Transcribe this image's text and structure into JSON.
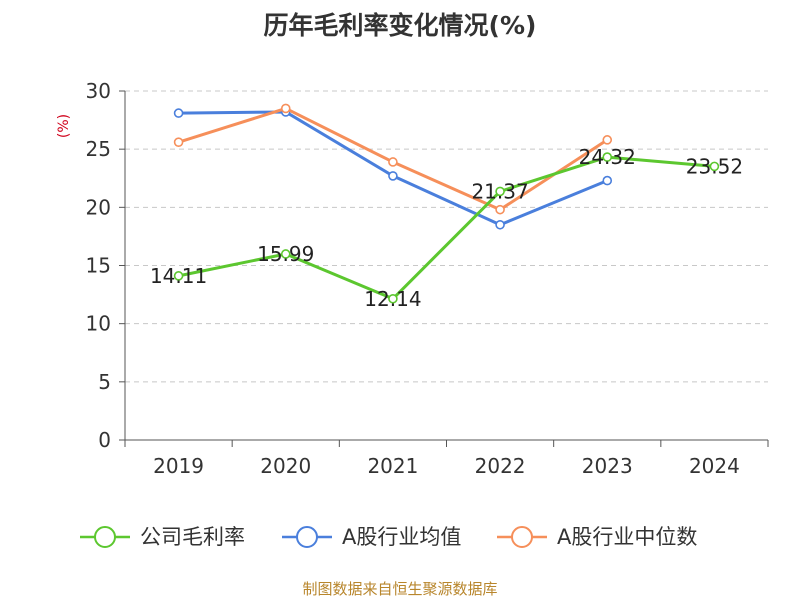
{
  "chart_data": {
    "type": "line",
    "title": "历年毛利率变化情况(%)",
    "ylabel": "(%)",
    "xlabel": "",
    "categories": [
      "2019",
      "2020",
      "2021",
      "2022",
      "2023",
      "2024"
    ],
    "ylim": [
      0,
      30
    ],
    "yticks": [
      0,
      5,
      10,
      15,
      20,
      25,
      30
    ],
    "grid": true,
    "legend_position": "bottom",
    "series": [
      {
        "name": "公司毛利率",
        "color": "#5cc72f",
        "values": [
          14.11,
          15.99,
          12.14,
          21.37,
          24.32,
          23.52
        ],
        "labels": [
          "14.11",
          "15.99",
          "12.14",
          "21.37",
          "24.32",
          "23.52"
        ]
      },
      {
        "name": "A股行业均值",
        "color": "#4a7fdc",
        "values": [
          28.1,
          28.2,
          22.7,
          18.5,
          22.3,
          null
        ]
      },
      {
        "name": "A股行业中位数",
        "color": "#f68f5a",
        "values": [
          25.6,
          28.5,
          23.9,
          19.8,
          25.8,
          null
        ]
      }
    ]
  },
  "source": "制图数据来自恒生聚源数据库"
}
